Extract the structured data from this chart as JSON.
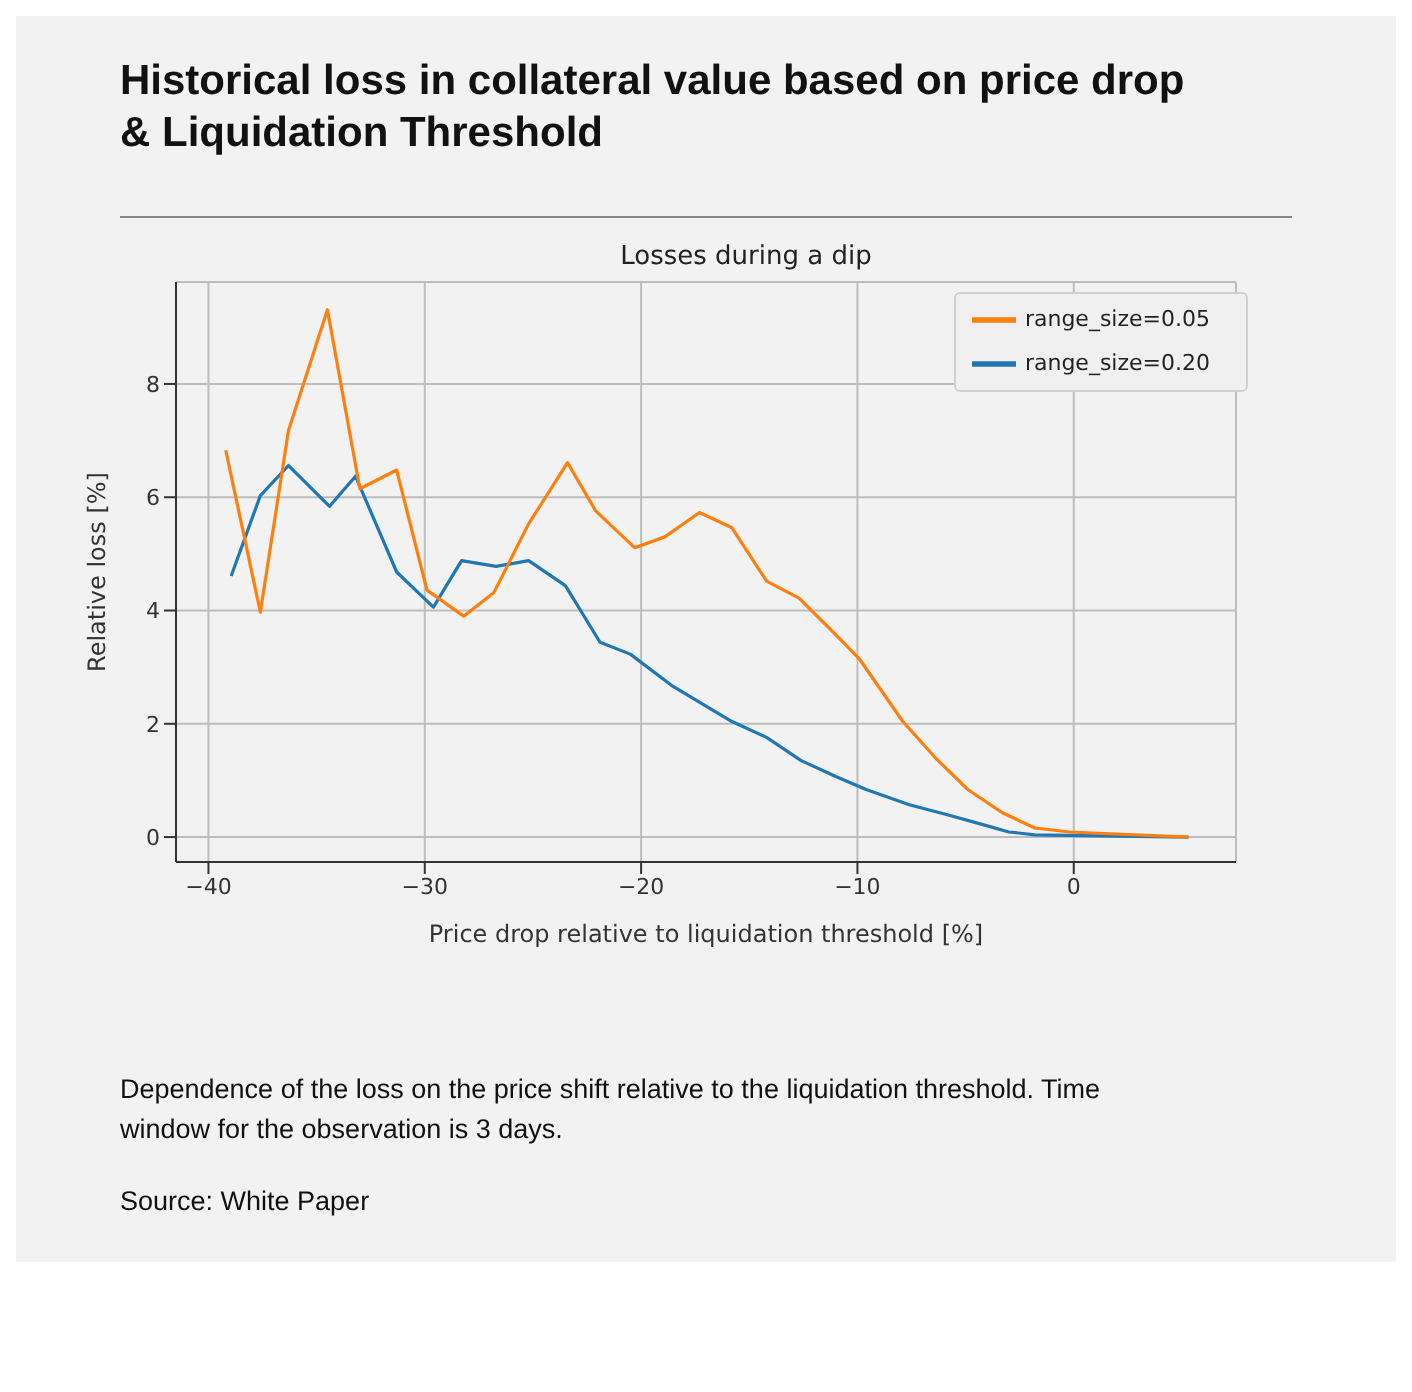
{
  "chart_data": {
    "type": "line",
    "title": "Historical loss in collateral value based on price drop & Liquidation Threshold",
    "subtitle": "Losses during a dip",
    "xlabel": "Price drop relative to liquidation threshold [%]",
    "ylabel": "Relative loss [%]",
    "series": [
      {
        "name": "range_size=0.20",
        "color": "#1f77b4",
        "x": [
          -38.95,
          -37.6,
          -36.3,
          -34.4,
          -33.2,
          -31.3,
          -29.6,
          -28.3,
          -26.7,
          -25.2,
          -23.5,
          -21.9,
          -20.5,
          -18.6,
          -15.8,
          -14.2,
          -12.6,
          -11.0,
          -9.6,
          -7.6,
          -5.8,
          -4.2,
          -3.0,
          -1.8,
          1.3,
          5.3
        ],
        "values": [
          4.61,
          6.03,
          6.56,
          5.84,
          6.37,
          4.68,
          4.06,
          4.88,
          4.78,
          4.88,
          4.44,
          3.44,
          3.23,
          2.68,
          2.04,
          1.76,
          1.35,
          1.07,
          0.84,
          0.57,
          0.39,
          0.22,
          0.09,
          0.04,
          0.02,
          0.0
        ]
      },
      {
        "name": "range_size=0.05",
        "color": "#ff7f0e",
        "x": [
          -39.2,
          -37.6,
          -36.3,
          -34.5,
          -33.0,
          -31.3,
          -29.9,
          -28.2,
          -26.8,
          -25.2,
          -23.4,
          -22.1,
          -20.3,
          -18.9,
          -17.3,
          -15.8,
          -14.2,
          -12.7,
          -11.2,
          -9.9,
          -7.9,
          -6.4,
          -4.9,
          -3.3,
          -1.8,
          -0.2,
          5.3
        ],
        "values": [
          6.83,
          3.97,
          7.18,
          9.31,
          6.15,
          6.48,
          4.36,
          3.9,
          4.32,
          5.53,
          6.61,
          5.76,
          5.11,
          5.3,
          5.73,
          5.46,
          4.52,
          4.22,
          3.65,
          3.14,
          2.04,
          1.4,
          0.84,
          0.43,
          0.16,
          0.09,
          0.0
        ]
      }
    ],
    "xlim": [
      -41.5,
      7.5
    ],
    "xticks": [
      -40,
      -30,
      -20,
      -10,
      0
    ],
    "ylim": [
      -0.44,
      9.8
    ],
    "yticks": [
      0,
      2,
      4,
      6,
      8
    ],
    "grid": true,
    "legend": "top right",
    "marker": "none",
    "line_style": "solid",
    "annotations": [
      "Dependence of the loss on the price shift relative to the liquidation threshold. Time window for the observation is 3 days.",
      "Source: White Paper"
    ]
  }
}
